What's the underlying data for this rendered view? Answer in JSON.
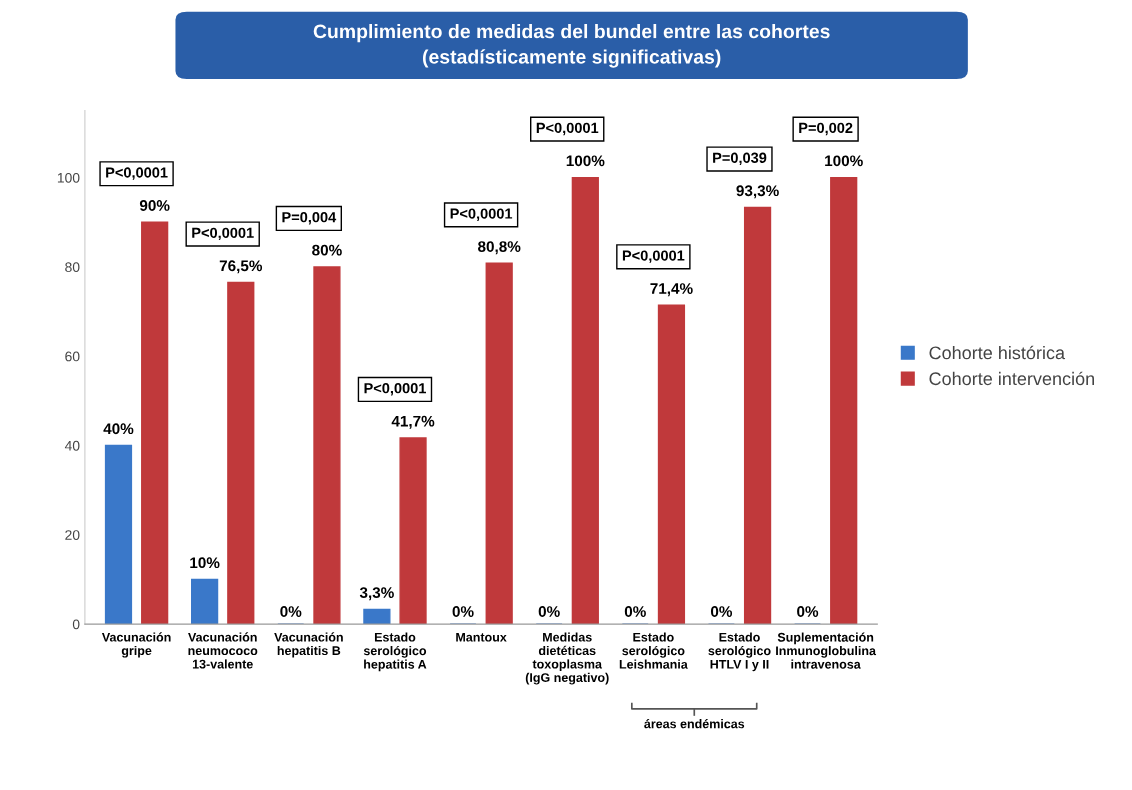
{
  "chart_data": {
    "type": "bar",
    "title": "Cumplimiento de medidas del bundel entre las cohortes\n(estadísticamente significativas)",
    "categories": [
      "Vacunación\ngripe",
      "Vacunación\nneumococo\n13-valente",
      "Vacunación\nhepatitis B",
      "Estado\nserológico\nhepatitis A",
      "Mantoux",
      "Medidas\ndietéticas\ntoxoplasma\n(IgG negativo)",
      "Estado\nserológico\nLeishmania",
      "Estado\nserológico\nHTLV I y II",
      "Suplementación\nInmunoglobulina\nintravenosa"
    ],
    "series": [
      {
        "name": "Cohorte histórica",
        "color": "#3a78c9",
        "values": [
          40,
          10,
          0,
          3.3,
          0,
          0,
          0,
          0,
          0
        ],
        "value_labels": [
          "40%",
          "10%",
          "0%",
          "3,3%",
          "0%",
          "0%",
          "0%",
          "0%",
          "0%"
        ]
      },
      {
        "name": "Cohorte intervención",
        "color": "#c0393b",
        "values": [
          90,
          76.5,
          80,
          41.7,
          80.8,
          100,
          71.4,
          93.3,
          100
        ],
        "value_labels": [
          "90%",
          "76,5%",
          "80%",
          "41,7%",
          "80,8%",
          "100%",
          "71,4%",
          "93,3%",
          "100%"
        ]
      }
    ],
    "ylim": [
      0,
      115
    ],
    "yticks": [
      0,
      20,
      40,
      60,
      80,
      100
    ],
    "grid": false,
    "legend": "right",
    "annotations": [
      "P<0,0001",
      "P<0,0001",
      "P=0,004",
      "P<0,0001",
      "P<0,0001",
      "P<0,0001",
      "P<0,0001",
      "P=0,039",
      "P=0,002",
      "áreas endémicas"
    ]
  }
}
